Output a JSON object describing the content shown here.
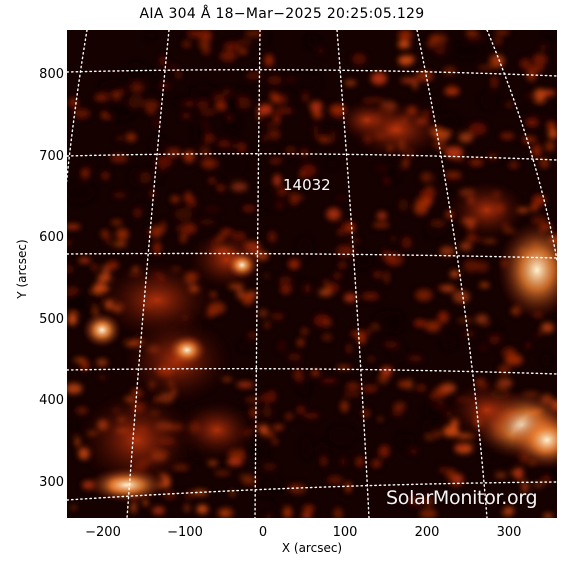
{
  "title": "AIA 304 Å 18−Mar−2025  20:25:05.129",
  "region_label": "14032",
  "watermark": "SolarMonitor.org",
  "axes": {
    "xlabel": "X (arcsec)",
    "ylabel": "Y (arcsec)",
    "x_ticks": [
      "−200",
      "−100",
      "0",
      "100",
      "200",
      "300"
    ],
    "y_ticks": [
      "800",
      "700",
      "600",
      "500",
      "400",
      "300"
    ],
    "x_range": [
      -245,
      355
    ],
    "y_range": [
      255,
      855
    ]
  },
  "colors": {
    "background": "#ffffff",
    "solar_dark": "#140100",
    "solar_mid": "#b0260a",
    "solar_bright": "#ffe6b8",
    "grid": "#ffffff"
  }
}
